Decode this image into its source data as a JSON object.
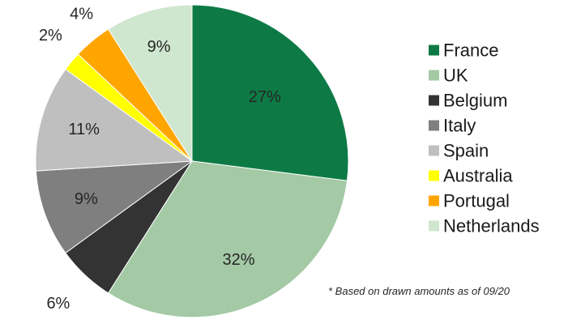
{
  "chart_data": {
    "type": "pie",
    "title": "",
    "slices": [
      {
        "label": "France",
        "value": 27,
        "display": "27%",
        "color": "#0d7a45"
      },
      {
        "label": "UK",
        "value": 32,
        "display": "32%",
        "color": "#a3c9a5"
      },
      {
        "label": "Belgium",
        "value": 6,
        "display": "6%",
        "color": "#333333"
      },
      {
        "label": "Italy",
        "value": 9,
        "display": "9%",
        "color": "#7f7f7f"
      },
      {
        "label": "Spain",
        "value": 11,
        "display": "11%",
        "color": "#bfbfbf"
      },
      {
        "label": "Australia",
        "value": 2,
        "display": "2%",
        "color": "#ffff00"
      },
      {
        "label": "Portugal",
        "value": 4,
        "display": "4%",
        "color": "#ffa500"
      },
      {
        "label": "Netherlands",
        "value": 9,
        "display": "9%",
        "color": "#cfe6cf"
      }
    ],
    "legend_position": "right",
    "start_angle": "12 o'clock",
    "direction": "clockwise"
  },
  "footnote": "* Based on drawn amounts as of 09/20"
}
